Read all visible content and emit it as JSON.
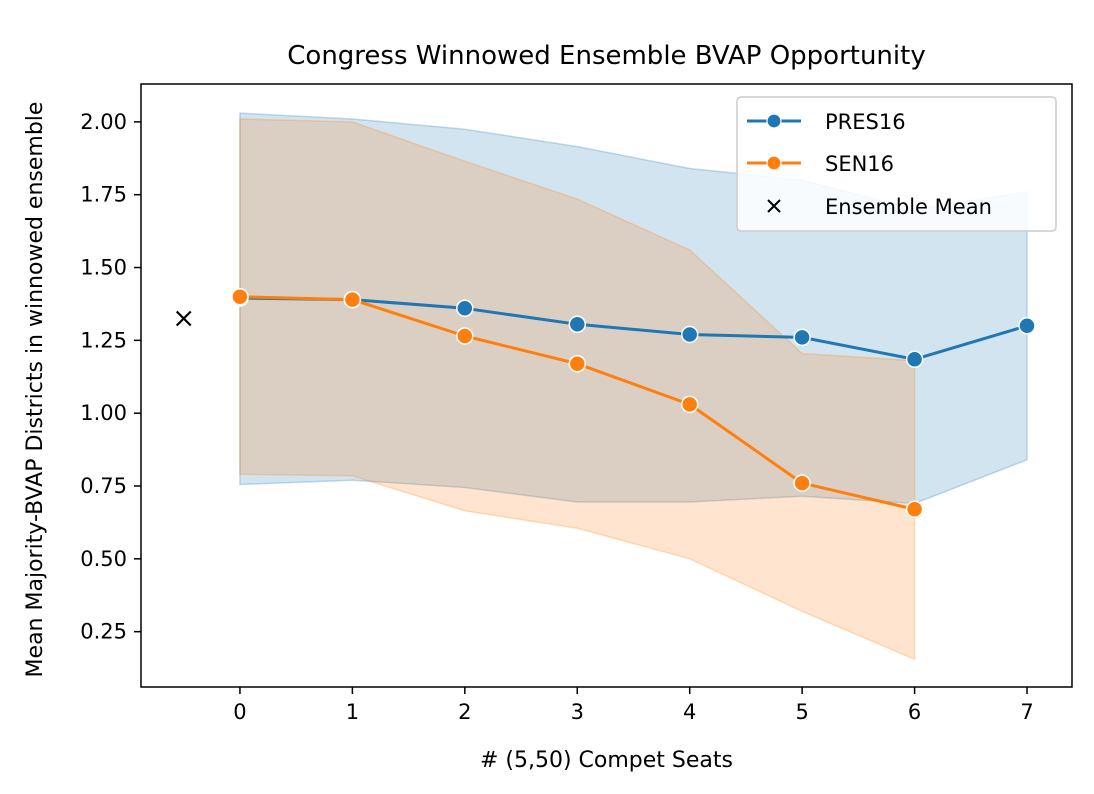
{
  "chart_data": {
    "type": "line",
    "title": "Congress Winnowed Ensemble BVAP Opportunity",
    "xlabel": "# (5,50) Compet Seats",
    "ylabel": "Mean Majority-BVAP Districts in winnowed ensemble",
    "xlim": [
      -0.88,
      7.4
    ],
    "ylim": [
      0.06,
      2.13
    ],
    "xticks": [
      0,
      1,
      2,
      3,
      4,
      5,
      6,
      7
    ],
    "yticks": [
      0.25,
      0.5,
      0.75,
      1.0,
      1.25,
      1.5,
      1.75,
      2.0
    ],
    "ytick_labels": [
      "0.25",
      "0.50",
      "0.75",
      "1.00",
      "1.25",
      "1.50",
      "1.75",
      "2.00"
    ],
    "grid": false,
    "legend_position": "top-right",
    "series": [
      {
        "name": "PRES16",
        "color": "#1f77b4",
        "x": [
          0,
          1,
          2,
          3,
          4,
          5,
          6,
          7
        ],
        "y": [
          1.395,
          1.39,
          1.36,
          1.305,
          1.27,
          1.26,
          1.185,
          1.3
        ],
        "band_upper": [
          2.03,
          2.01,
          1.975,
          1.915,
          1.84,
          1.8,
          1.7,
          1.76
        ],
        "band_lower": [
          0.755,
          0.77,
          0.745,
          0.695,
          0.695,
          0.715,
          0.69,
          0.84
        ]
      },
      {
        "name": "SEN16",
        "color": "#ff7f0e",
        "x": [
          0,
          1,
          2,
          3,
          4,
          5,
          6
        ],
        "y": [
          1.4,
          1.39,
          1.265,
          1.17,
          1.03,
          0.76,
          0.67
        ],
        "band_upper": [
          2.01,
          2.0,
          1.865,
          1.735,
          1.56,
          1.205,
          1.18
        ],
        "band_lower": [
          0.79,
          0.785,
          0.665,
          0.605,
          0.5,
          0.32,
          0.155
        ]
      }
    ],
    "ensemble_mean": {
      "name": "Ensemble Mean",
      "x": -0.5,
      "y": 1.325,
      "color": "#000000"
    }
  }
}
